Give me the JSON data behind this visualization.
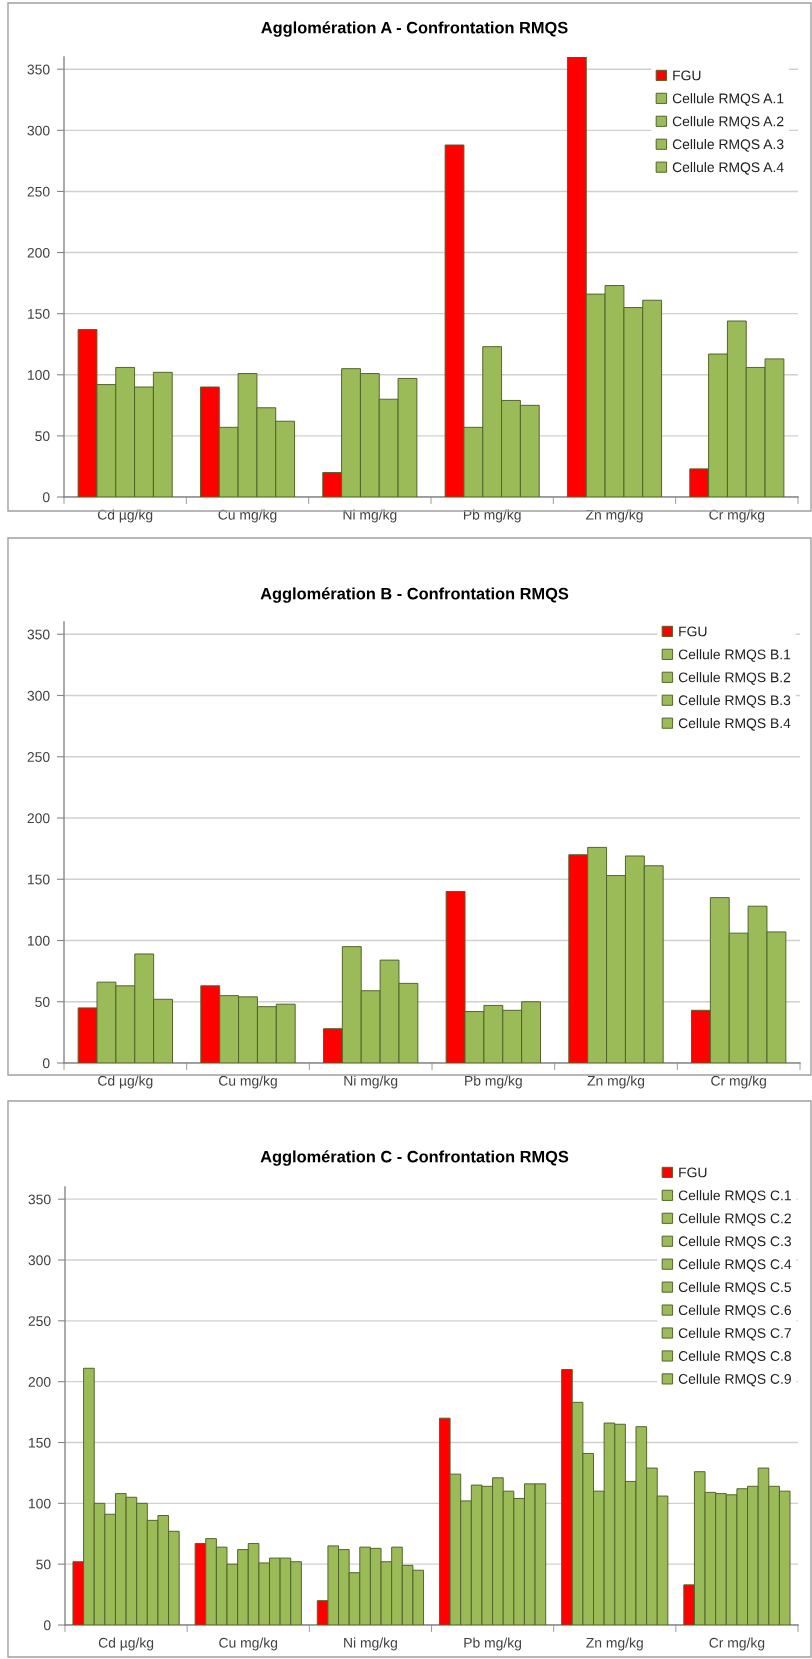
{
  "chart_data": [
    {
      "type": "bar",
      "title": "Agglomération A - Confrontation RMQS",
      "categories": [
        "Cd µg/kg",
        "Cu mg/kg",
        "Ni mg/kg",
        "Pb mg/kg",
        "Zn mg/kg",
        "Cr mg/kg"
      ],
      "series": [
        {
          "name": "FGU",
          "color": "#ff0000",
          "values": [
            137,
            90,
            20,
            288,
            360,
            23
          ]
        },
        {
          "name": "Cellule RMQS A.1",
          "color": "#9bbb59",
          "values": [
            92,
            57,
            105,
            57,
            166,
            117
          ]
        },
        {
          "name": "Cellule RMQS A.2",
          "color": "#9bbb59",
          "values": [
            106,
            101,
            101,
            123,
            173,
            144
          ]
        },
        {
          "name": "Cellule RMQS A.3",
          "color": "#9bbb59",
          "values": [
            90,
            73,
            80,
            79,
            155,
            106
          ]
        },
        {
          "name": "Cellule RMQS A.4",
          "color": "#9bbb59",
          "values": [
            102,
            62,
            97,
            75,
            161,
            113
          ]
        }
      ],
      "ylim": [
        0,
        360
      ],
      "yticks": [
        0,
        50,
        100,
        150,
        200,
        250,
        300,
        350
      ],
      "grid": "y",
      "legend": "top right"
    },
    {
      "type": "bar",
      "title": "Agglomération B - Confrontation RMQS",
      "categories": [
        "Cd µg/kg",
        "Cu mg/kg",
        "Ni mg/kg",
        "Pb mg/kg",
        "Zn mg/kg",
        "Cr mg/kg"
      ],
      "series": [
        {
          "name": "FGU",
          "color": "#ff0000",
          "values": [
            45,
            63,
            28,
            140,
            170,
            43
          ]
        },
        {
          "name": "Cellule RMQS B.1",
          "color": "#9bbb59",
          "values": [
            66,
            55,
            95,
            42,
            176,
            135
          ]
        },
        {
          "name": "Cellule RMQS B.2",
          "color": "#9bbb59",
          "values": [
            63,
            54,
            59,
            47,
            153,
            106
          ]
        },
        {
          "name": "Cellule RMQS B.3",
          "color": "#9bbb59",
          "values": [
            89,
            46,
            84,
            43,
            169,
            128
          ]
        },
        {
          "name": "Cellule RMQS B.4",
          "color": "#9bbb59",
          "values": [
            52,
            48,
            65,
            50,
            161,
            107
          ]
        }
      ],
      "ylim": [
        0,
        360
      ],
      "yticks": [
        0,
        50,
        100,
        150,
        200,
        250,
        300,
        350
      ],
      "grid": "y",
      "legend": "top right"
    },
    {
      "type": "bar",
      "title": "Agglomération C - Confrontation RMQS",
      "categories": [
        "Cd µg/kg",
        "Cu mg/kg",
        "Ni mg/kg",
        "Pb mg/kg",
        "Zn mg/kg",
        "Cr mg/kg"
      ],
      "series": [
        {
          "name": "FGU",
          "color": "#ff0000",
          "values": [
            52,
            67,
            20,
            170,
            210,
            33
          ]
        },
        {
          "name": "Cellule RMQS C.1",
          "color": "#9bbb59",
          "values": [
            211,
            71,
            65,
            124,
            183,
            126
          ]
        },
        {
          "name": "Cellule RMQS C.2",
          "color": "#9bbb59",
          "values": [
            100,
            64,
            62,
            102,
            141,
            109
          ]
        },
        {
          "name": "Cellule RMQS C.3",
          "color": "#9bbb59",
          "values": [
            91,
            50,
            43,
            115,
            110,
            108
          ]
        },
        {
          "name": "Cellule RMQS C.4",
          "color": "#9bbb59",
          "values": [
            108,
            62,
            64,
            114,
            166,
            107
          ]
        },
        {
          "name": "Cellule RMQS C.5",
          "color": "#9bbb59",
          "values": [
            105,
            67,
            63,
            121,
            165,
            112
          ]
        },
        {
          "name": "Cellule RMQS C.6",
          "color": "#9bbb59",
          "values": [
            100,
            51,
            52,
            110,
            118,
            114
          ]
        },
        {
          "name": "Cellule RMQS C.7",
          "color": "#9bbb59",
          "values": [
            86,
            55,
            64,
            104,
            163,
            129
          ]
        },
        {
          "name": "Cellule RMQS C.8",
          "color": "#9bbb59",
          "values": [
            90,
            55,
            49,
            116,
            129,
            114
          ]
        },
        {
          "name": "Cellule RMQS C.9",
          "color": "#9bbb59",
          "values": [
            77,
            52,
            45,
            116,
            106,
            110
          ]
        }
      ],
      "ylim": [
        0,
        360
      ],
      "yticks": [
        0,
        50,
        100,
        150,
        200,
        250,
        300,
        350
      ],
      "grid": "y",
      "legend": "top right"
    }
  ]
}
